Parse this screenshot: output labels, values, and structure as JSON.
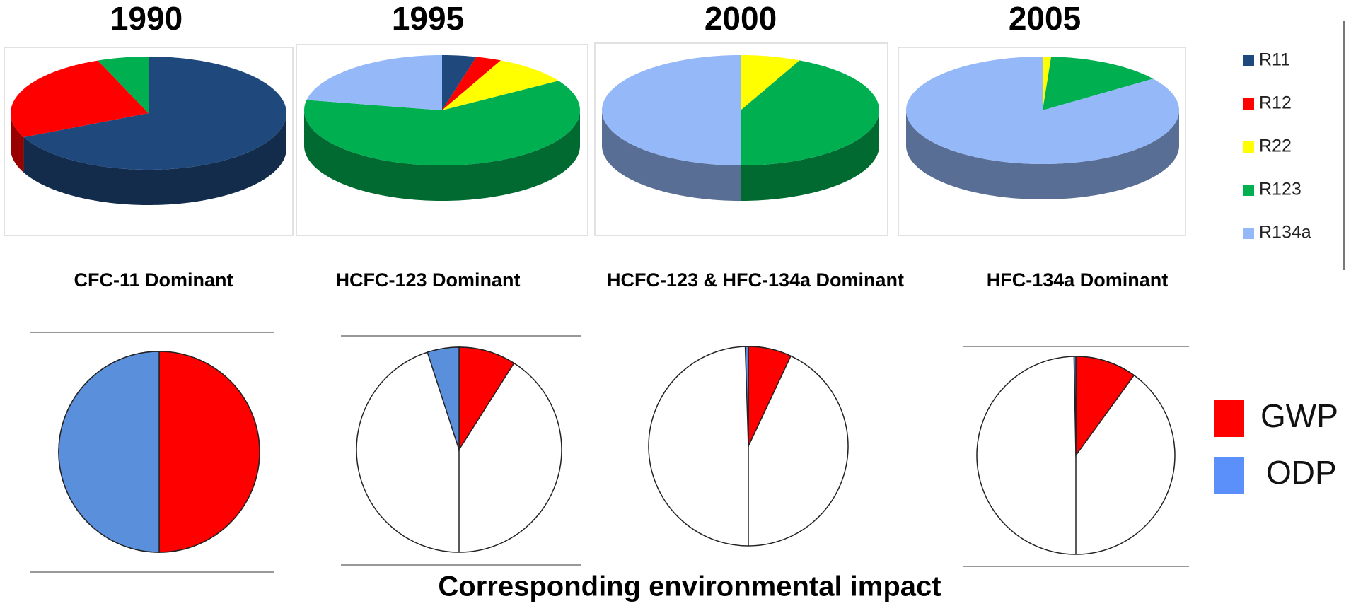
{
  "chart_data": [
    {
      "type": "pie",
      "style": "3d",
      "legend": {
        "categories": [
          "R11",
          "R12",
          "R22",
          "R123",
          "R134a"
        ],
        "colors": [
          "#1f497d",
          "#ff0000",
          "#ffff00",
          "#00b050",
          "#95b8f8"
        ]
      },
      "pies": [
        {
          "title": "1990",
          "subtitle": "CFC-11 Dominant",
          "values": [
            68,
            26,
            0,
            6,
            0
          ]
        },
        {
          "title": "1995",
          "subtitle": "HCFC-123 Dominant",
          "values": [
            4,
            3,
            9,
            62,
            22
          ]
        },
        {
          "title": "2000",
          "subtitle": "HCFC-123 & HFC-134a Dominant",
          "values": [
            0,
            0,
            7,
            43,
            50
          ]
        },
        {
          "title": "2005",
          "subtitle": "HFC-134a Dominant",
          "values": [
            0,
            0,
            1,
            14,
            85
          ]
        }
      ]
    },
    {
      "type": "pie",
      "style": "flat",
      "caption": "Corresponding environmental impact",
      "legend": {
        "categories": [
          "GWP",
          "ODP"
        ],
        "colors": [
          "#ff0000",
          "#5a8fdc"
        ]
      },
      "pies": [
        {
          "values": [
            50,
            50
          ]
        },
        {
          "values": [
            9,
            5
          ]
        },
        {
          "values": [
            7,
            0.5
          ]
        },
        {
          "values": [
            10,
            0.3
          ]
        }
      ]
    }
  ]
}
